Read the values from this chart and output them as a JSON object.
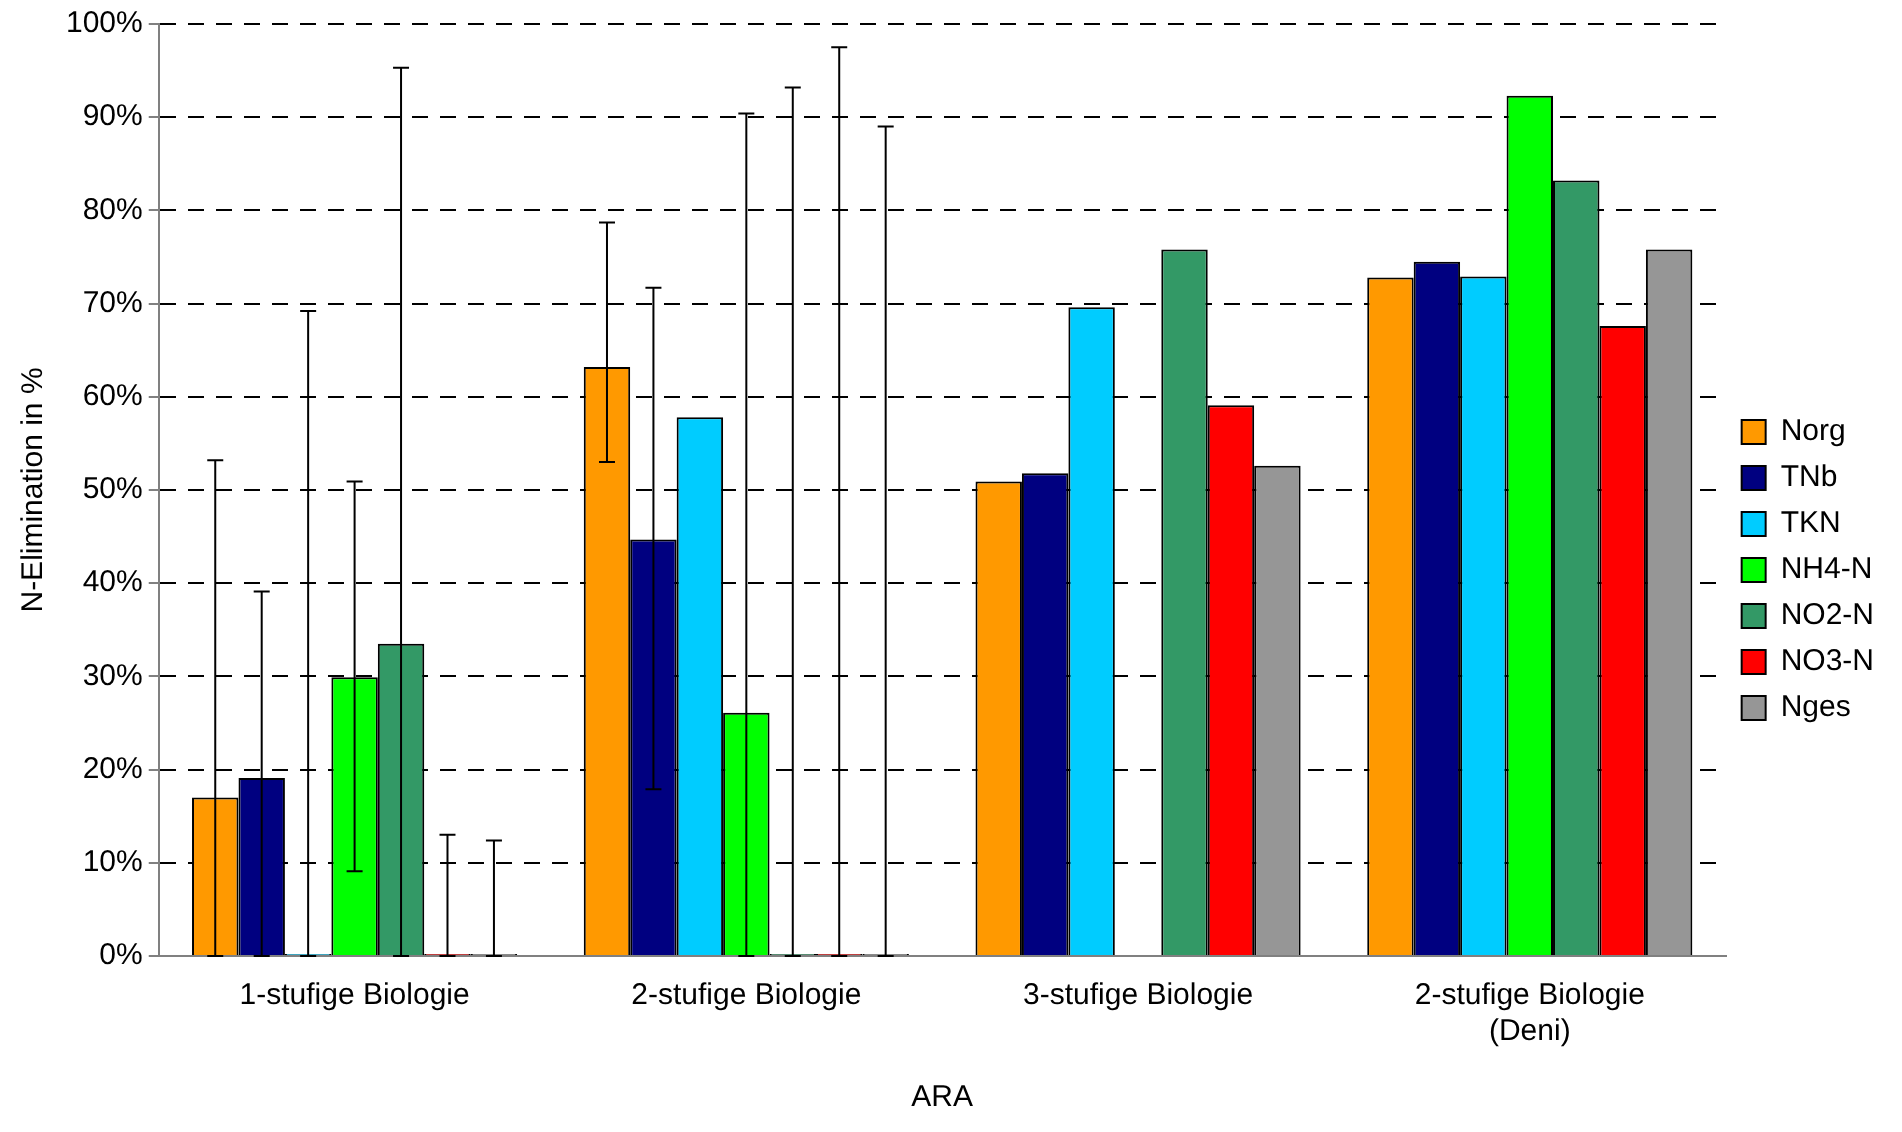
{
  "chart_data": {
    "type": "bar",
    "xlabel": "ARA",
    "ylabel": "N-Elimination in %",
    "categories": [
      "1-stufige Biologie",
      "2-stufige Biologie",
      "3-stufige Biologie",
      "2-stufige Biologie\n(Deni)"
    ],
    "ylim": [
      0,
      100
    ],
    "yticks": [
      {
        "value": 0,
        "label": "0%"
      },
      {
        "value": 10,
        "label": "10%"
      },
      {
        "value": 20,
        "label": "20%"
      },
      {
        "value": 30,
        "label": "30%"
      },
      {
        "value": 40,
        "label": "40%"
      },
      {
        "value": 50,
        "label": "50%"
      },
      {
        "value": 60,
        "label": "60%"
      },
      {
        "value": 70,
        "label": "70%"
      },
      {
        "value": 80,
        "label": "80%"
      },
      {
        "value": 90,
        "label": "90%"
      },
      {
        "value": 100,
        "label": "100%"
      }
    ],
    "grid": "y",
    "legend": "right",
    "series": [
      {
        "name": "Norg",
        "color": "#ff9900",
        "values": [
          17.0,
          63.2,
          50.9,
          72.8
        ],
        "errors": [
          [
            0,
            53.2
          ],
          [
            53.0,
            78.7
          ],
          null,
          null
        ]
      },
      {
        "name": "TNb",
        "color": "#000080",
        "values": [
          19.1,
          44.7,
          51.8,
          74.5
        ],
        "errors": [
          [
            0,
            39.1
          ],
          [
            17.9,
            71.7
          ],
          null,
          null
        ]
      },
      {
        "name": "TKN",
        "color": "#00ccff",
        "values": [
          0,
          57.8,
          69.6,
          72.9
        ],
        "errors": [
          [
            0,
            69.2
          ],
          null,
          null,
          null
        ]
      },
      {
        "name": "NH4-N",
        "color": "#00ff00",
        "values": [
          29.9,
          26.1,
          null,
          92.3
        ],
        "errors": [
          [
            9.1,
            50.9
          ],
          [
            0,
            90.4
          ],
          null,
          null
        ]
      },
      {
        "name": "NO2-N",
        "color": "#339966",
        "values": [
          33.5,
          0,
          75.8,
          83.2
        ],
        "errors": [
          [
            0,
            95.3
          ],
          [
            0,
            93.2
          ],
          null,
          null
        ]
      },
      {
        "name": "NO3-N",
        "color": "#ff0000",
        "values": [
          0,
          0,
          59.1,
          67.6
        ],
        "errors": [
          [
            0,
            13.0
          ],
          [
            0,
            97.5
          ],
          null,
          null
        ]
      },
      {
        "name": "Nges",
        "color": "#969696",
        "values": [
          0,
          0,
          52.6,
          75.8
        ],
        "errors": [
          [
            0,
            12.4
          ],
          [
            0,
            89.0
          ],
          null,
          null
        ]
      }
    ]
  }
}
